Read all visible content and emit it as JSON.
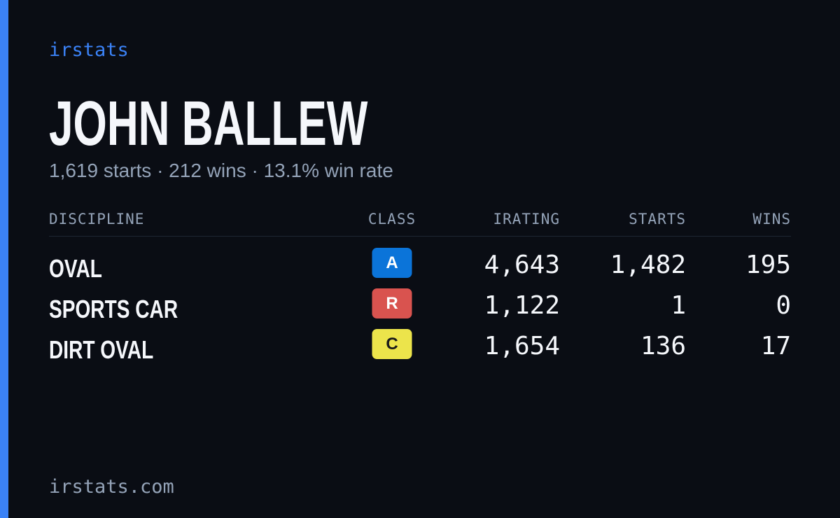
{
  "brand": "irstats",
  "driver": {
    "name": "JOHN BALLEW",
    "summary": "1,619 starts · 212 wins · 13.1% win rate"
  },
  "table": {
    "headers": [
      "DISCIPLINE",
      "CLASS",
      "IRATING",
      "STARTS",
      "WINS"
    ],
    "rows": [
      {
        "discipline": "OVAL",
        "class": "A",
        "class_color": "#0b74d9",
        "class_text_color": "#ffffff",
        "irating": "4,643",
        "starts": "1,482",
        "wins": "195"
      },
      {
        "discipline": "SPORTS CAR",
        "class": "R",
        "class_color": "#d9534f",
        "class_text_color": "#ffffff",
        "irating": "1,122",
        "starts": "1",
        "wins": "0"
      },
      {
        "discipline": "DIRT OVAL",
        "class": "C",
        "class_color": "#ece44b",
        "class_text_color": "#1a1a1a",
        "irating": "1,654",
        "starts": "136",
        "wins": "17"
      }
    ]
  },
  "footer": "irstats.com"
}
